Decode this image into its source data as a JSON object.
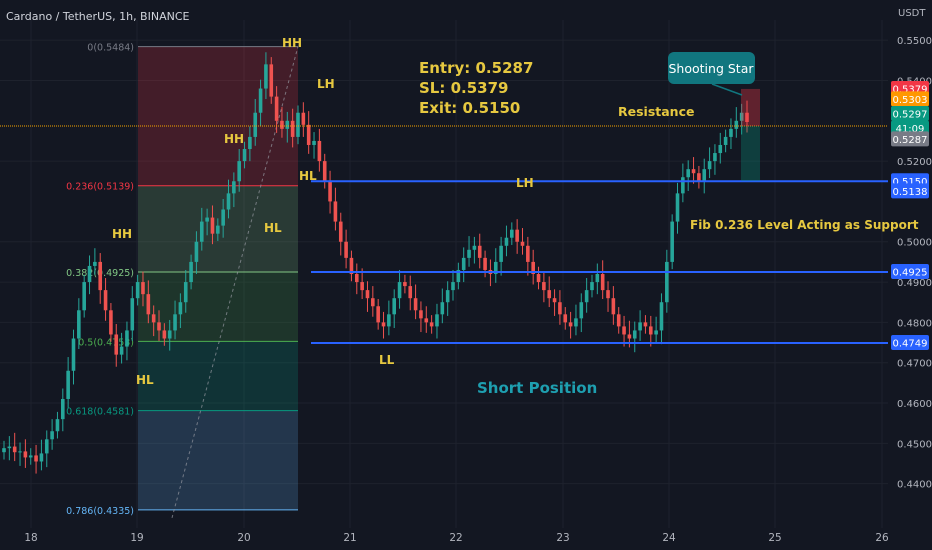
{
  "header": {
    "symbol_title": "Cardano / TetherUS, 1h, BINANCE"
  },
  "price_axis": {
    "currency": "USDT",
    "ticks": [
      "0.5500",
      "0.5400",
      "0.5200",
      "0.5000",
      "0.4900",
      "0.4800",
      "0.4700",
      "0.4600",
      "0.4500",
      "0.4400"
    ]
  },
  "time_axis": {
    "ticks": [
      "18",
      "19",
      "20",
      "21",
      "22",
      "23",
      "24",
      "25",
      "26"
    ]
  },
  "trade": {
    "entry": "Entry: 0.5287",
    "sl": "SL: 0.5379",
    "exit": "Exit: 0.5150"
  },
  "labels": {
    "resistance": "Resistance",
    "fib_support": "Fib 0.236 Level Acting as Support",
    "short_position": "Short Position",
    "shooting_star": "Shooting Star"
  },
  "structure_labels": [
    "HH",
    "LH",
    "HH",
    "HL",
    "HL",
    "HH",
    "HL",
    "LH",
    "LL"
  ],
  "fib_levels": [
    {
      "label": "0(0.5484)",
      "color": "#787b86"
    },
    {
      "label": "0.236(0.5139)",
      "color": "#f23645"
    },
    {
      "label": "0.382(0.4925)",
      "color": "#81c784"
    },
    {
      "label": "0.5(0.4753)",
      "color": "#4caf50"
    },
    {
      "label": "0.618(0.4581)",
      "color": "#089981"
    },
    {
      "label": "0.786(0.4335)",
      "color": "#64b5f6"
    }
  ],
  "price_badges": [
    {
      "text": "0.5379",
      "color": "#f23645"
    },
    {
      "text": "0.5303",
      "color": "#ff9800"
    },
    {
      "text": "0.5297",
      "color": "#089981"
    },
    {
      "text": "41:09",
      "color": "#089981"
    },
    {
      "text": "0.5287",
      "color": "#787b86"
    },
    {
      "text": "0.5150",
      "color": "#2962ff"
    },
    {
      "text": "0.5138",
      "color": "#2962ff"
    },
    {
      "text": "0.4925",
      "color": "#2962ff"
    },
    {
      "text": "0.4749",
      "color": "#2962ff"
    }
  ],
  "colors": {
    "up": "#26a69a",
    "down": "#ef5350",
    "line": "#2962ff",
    "annotation": "#e6c840",
    "teal_text": "#1e9fb0"
  },
  "chart_data": {
    "type": "candlestick",
    "title": "Cardano / TetherUS, 1h, BINANCE",
    "ylim": [
      0.429,
      0.555
    ],
    "x_days": [
      "18",
      "19",
      "20",
      "21",
      "22",
      "23",
      "24",
      "25",
      "26"
    ],
    "horizontal_levels": [
      0.515,
      0.4925,
      0.4749
    ],
    "entry_line": 0.5287,
    "close_profile": [
      0.4488,
      0.4492,
      0.4478,
      0.448,
      0.4465,
      0.447,
      0.4455,
      0.4475,
      0.451,
      0.453,
      0.456,
      0.461,
      0.468,
      0.476,
      0.483,
      0.49,
      0.494,
      0.495,
      0.488,
      0.483,
      0.477,
      0.472,
      0.474,
      0.478,
      0.486,
      0.49,
      0.487,
      0.482,
      0.48,
      0.478,
      0.476,
      0.478,
      0.482,
      0.485,
      0.49,
      0.495,
      0.5,
      0.505,
      0.506,
      0.502,
      0.504,
      0.508,
      0.512,
      0.515,
      0.52,
      0.523,
      0.526,
      0.532,
      0.538,
      0.544,
      0.536,
      0.53,
      0.528,
      0.53,
      0.526,
      0.532,
      0.529,
      0.524,
      0.525,
      0.52,
      0.515,
      0.51,
      0.505,
      0.5,
      0.496,
      0.492,
      0.49,
      0.488,
      0.486,
      0.484,
      0.48,
      0.479,
      0.482,
      0.486,
      0.49,
      0.489,
      0.486,
      0.483,
      0.481,
      0.48,
      0.479,
      0.482,
      0.485,
      0.488,
      0.49,
      0.493,
      0.496,
      0.498,
      0.499,
      0.496,
      0.493,
      0.492,
      0.495,
      0.499,
      0.501,
      0.503,
      0.5,
      0.499,
      0.495,
      0.492,
      0.49,
      0.488,
      0.486,
      0.485,
      0.482,
      0.48,
      0.479,
      0.481,
      0.485,
      0.488,
      0.49,
      0.492,
      0.488,
      0.486,
      0.482,
      0.479,
      0.477,
      0.476,
      0.478,
      0.48,
      0.479,
      0.477,
      0.478,
      0.485,
      0.495,
      0.505,
      0.512,
      0.516,
      0.518,
      0.517,
      0.515,
      0.518,
      0.52,
      0.522,
      0.524,
      0.526,
      0.528,
      0.53,
      0.532,
      0.5297
    ]
  }
}
